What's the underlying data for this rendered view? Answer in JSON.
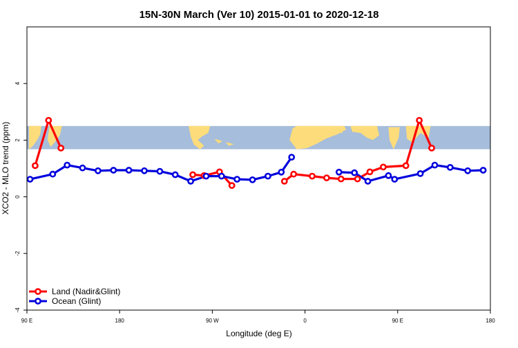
{
  "chart_data": {
    "type": "line",
    "title": "15N-30N March (Ver 10)   2015-01-01 to 2020-12-18",
    "xlabel": "Longitude (deg E)",
    "ylabel": "XCO2 - MLO trend (ppm)",
    "xlim": [
      90,
      540
    ],
    "ylim": [
      -4,
      6
    ],
    "x_ticks": [
      {
        "value": 90,
        "label": "90 E"
      },
      {
        "value": 180,
        "label": "180"
      },
      {
        "value": 270,
        "label": "90 W"
      },
      {
        "value": 360,
        "label": "0"
      },
      {
        "value": 450,
        "label": "90 E"
      },
      {
        "value": 540,
        "label": "180"
      }
    ],
    "y_ticks": [
      {
        "value": -4,
        "label": "-4"
      },
      {
        "value": -2,
        "label": "-2"
      },
      {
        "value": 0,
        "label": "0"
      },
      {
        "value": 2,
        "label": "2"
      },
      {
        "value": 4,
        "label": "4"
      }
    ],
    "map_band": {
      "y_range": [
        1.68,
        2.5
      ],
      "ocean_color": "#a6bddb",
      "land_color": "#fddc7b"
    },
    "legend_position": "bottom-left",
    "series": [
      {
        "name": "Land (Nadir&Glint)",
        "color": "#ff0000",
        "segments": [
          [
            [
              98,
              1.1
            ],
            [
              111,
              2.7
            ],
            [
              123,
              1.72
            ]
          ],
          [
            [
              251,
              0.78
            ],
            [
              262,
              0.75
            ],
            [
              277,
              0.88
            ],
            [
              289,
              0.4
            ]
          ],
          [
            [
              340,
              0.55
            ],
            [
              349,
              0.8
            ],
            [
              367,
              0.73
            ],
            [
              381,
              0.67
            ],
            [
              395,
              0.63
            ],
            [
              411,
              0.63
            ],
            [
              423,
              0.88
            ],
            [
              436,
              1.05
            ],
            [
              458,
              1.1
            ],
            [
              471,
              2.7
            ],
            [
              483,
              1.72
            ]
          ]
        ]
      },
      {
        "name": "Ocean (Glint)",
        "color": "#0000dd",
        "segments": [
          [
            [
              93,
              0.62
            ],
            [
              115,
              0.8
            ],
            [
              129,
              1.12
            ],
            [
              144,
              1.02
            ],
            [
              159,
              0.92
            ],
            [
              174,
              0.94
            ],
            [
              189,
              0.94
            ],
            [
              204,
              0.92
            ],
            [
              219,
              0.9
            ],
            [
              234,
              0.78
            ],
            [
              249,
              0.55
            ],
            [
              264,
              0.73
            ],
            [
              279,
              0.73
            ],
            [
              294,
              0.62
            ],
            [
              309,
              0.6
            ],
            [
              324,
              0.73
            ],
            [
              337,
              0.87
            ],
            [
              347,
              1.4
            ]
          ],
          [
            [
              393,
              0.87
            ],
            [
              408,
              0.85
            ],
            [
              421,
              0.55
            ],
            [
              441,
              0.75
            ],
            [
              447,
              0.62
            ],
            [
              472,
              0.82
            ],
            [
              486,
              1.12
            ],
            [
              501,
              1.04
            ],
            [
              518,
              0.92
            ],
            [
              533,
              0.94
            ]
          ]
        ]
      }
    ]
  }
}
